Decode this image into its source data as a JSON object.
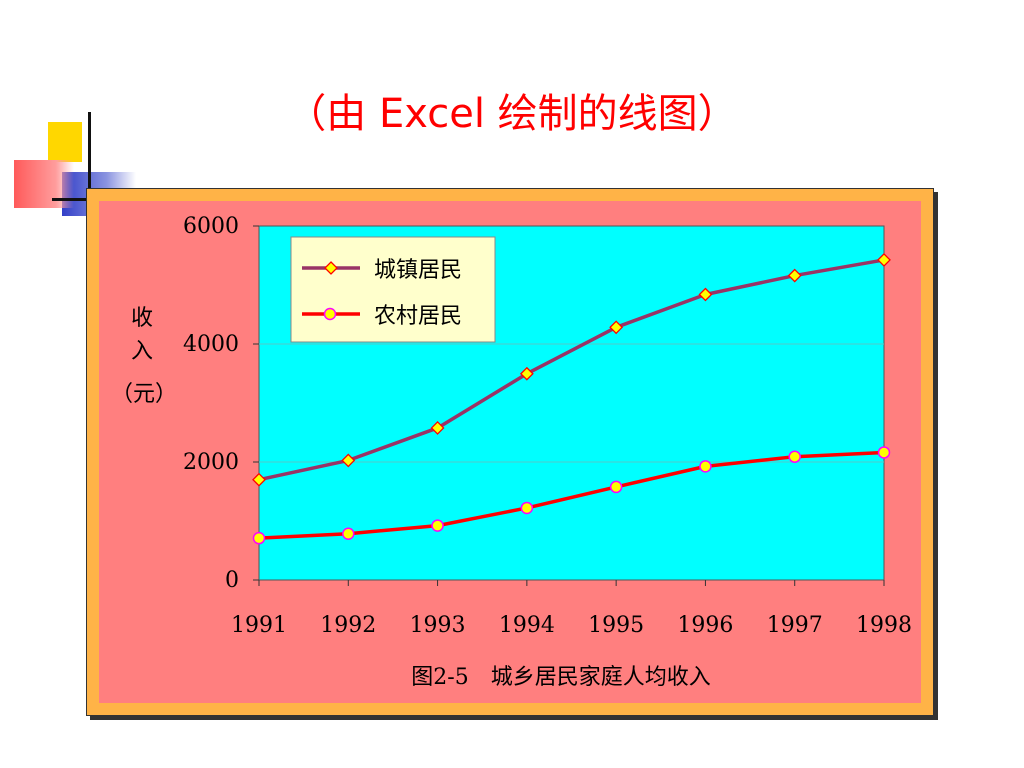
{
  "slide": {
    "title": "（由 Excel 绘制的线图）"
  },
  "colors": {
    "title": "#ff0000",
    "frame": "#ffb347",
    "chart_area": "#ff7f7f",
    "plot_area": "#00ffff",
    "legend_bg": "#ffffcc",
    "urban_line": "#993366",
    "rural_line": "#ff0000",
    "marker_fill": "#ffff00"
  },
  "chart_data": {
    "type": "line",
    "caption": "图2-5　城乡居民家庭人均收入",
    "ylabel_lines": [
      "收",
      "入",
      "（元）"
    ],
    "x": [
      "1991",
      "1992",
      "1993",
      "1994",
      "1995",
      "1996",
      "1997",
      "1998"
    ],
    "ylim": [
      0,
      6000
    ],
    "yticks": [
      "0",
      "2000",
      "4000",
      "6000"
    ],
    "grid": true,
    "legend_position": "top-left",
    "series": [
      {
        "name": "城镇居民",
        "marker": "diamond",
        "values": [
          1700,
          2027,
          2577,
          3496,
          4283,
          4839,
          5160,
          5425
        ]
      },
      {
        "name": "农村居民",
        "marker": "circle",
        "values": [
          709,
          784,
          922,
          1221,
          1578,
          1926,
          2090,
          2162
        ]
      }
    ]
  }
}
